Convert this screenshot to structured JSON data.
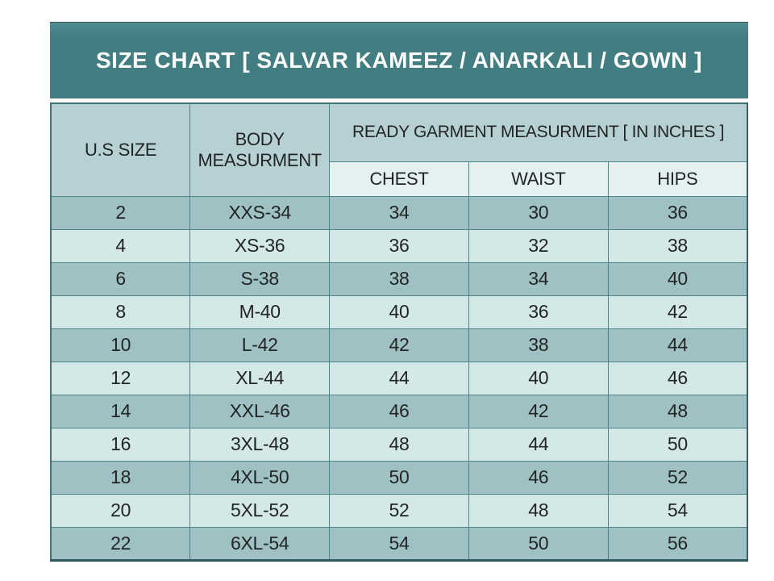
{
  "header": {
    "title": "SIZE CHART [ SALVAR KAMEEZ / ANARKALI / GOWN ]"
  },
  "chart_data": {
    "type": "table",
    "title": "SIZE CHART [ SALVAR KAMEEZ / ANARKALI / GOWN ]",
    "columns": [
      "U.S SIZE",
      "BODY MEASURMENT",
      "CHEST",
      "WAIST",
      "HIPS"
    ],
    "column_group": {
      "label": "READY GARMENT MEASURMENT [ IN INCHES ]",
      "spans": [
        "CHEST",
        "WAIST",
        "HIPS"
      ]
    },
    "units": "inches",
    "rows": [
      [
        2,
        "XXS-34",
        34,
        30,
        36
      ],
      [
        4,
        "XS-36",
        36,
        32,
        38
      ],
      [
        6,
        "S-38",
        38,
        34,
        40
      ],
      [
        8,
        "M-40",
        40,
        36,
        42
      ],
      [
        10,
        "L-42",
        42,
        38,
        44
      ],
      [
        12,
        "XL-44",
        44,
        40,
        46
      ],
      [
        14,
        "XXL-46",
        46,
        42,
        48
      ],
      [
        16,
        "3XL-48",
        48,
        44,
        50
      ],
      [
        18,
        "4XL-50",
        50,
        46,
        52
      ],
      [
        20,
        "5XL-52",
        52,
        48,
        54
      ],
      [
        22,
        "6XL-54",
        54,
        50,
        56
      ]
    ]
  },
  "colors": {
    "title_bar": "#417d81",
    "title_text": "#ffffff",
    "header_cell": "#b6d0d3",
    "subheader_cell": "#e4f1f0",
    "row_dark": "#9fc1c3",
    "row_light": "#d4e8e8",
    "border": "#4f8588",
    "cell_text": "#212526"
  }
}
